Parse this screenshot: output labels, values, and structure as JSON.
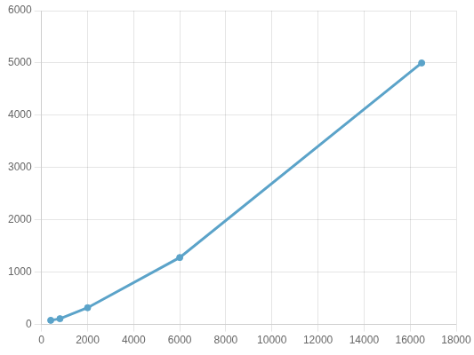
{
  "chart_data": {
    "type": "line",
    "x": [
      400,
      800,
      2000,
      6000,
      16500
    ],
    "values": [
      80,
      110,
      320,
      1280,
      5000
    ],
    "color": "#5ba3c9",
    "marker": "circle",
    "xlim": [
      0,
      18000
    ],
    "ylim": [
      0,
      6000
    ],
    "xticks": [
      0,
      2000,
      4000,
      6000,
      8000,
      10000,
      12000,
      14000,
      16000,
      18000
    ],
    "yticks": [
      0,
      1000,
      2000,
      3000,
      4000,
      5000,
      6000
    ],
    "grid": true
  }
}
